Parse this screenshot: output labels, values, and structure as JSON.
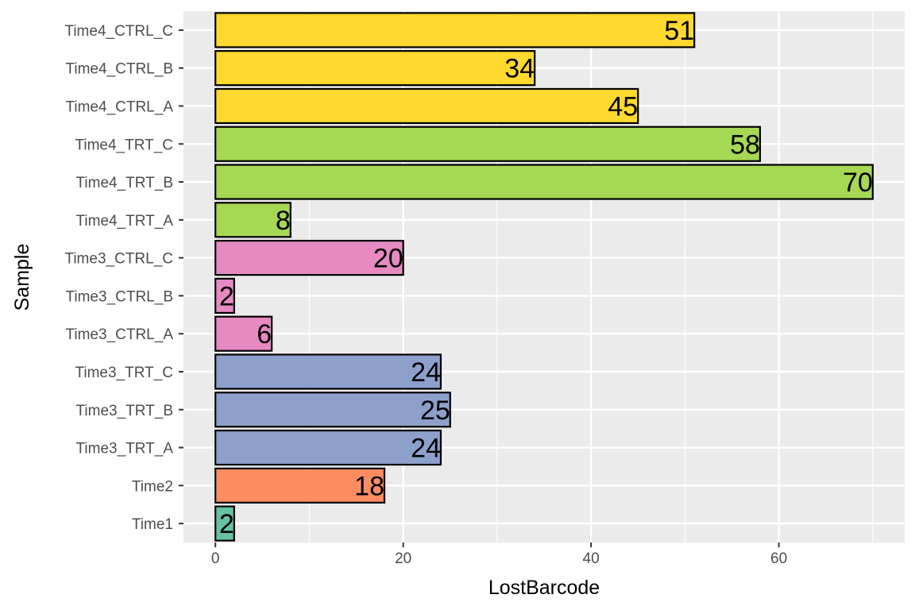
{
  "chart_data": {
    "type": "bar",
    "orientation": "horizontal",
    "xlabel": "LostBarcode",
    "ylabel": "Sample",
    "xlim": [
      -3.4,
      73.4
    ],
    "x_ticks": [
      0,
      20,
      40,
      60
    ],
    "grid": true,
    "legend": "none",
    "panel_background": "#ebebeb",
    "gridline_color": "#ffffff",
    "bar_outline_color": "#000000",
    "categories": [
      "Time1",
      "Time2",
      "Time3_TRT_A",
      "Time3_TRT_B",
      "Time3_TRT_C",
      "Time3_CTRL_A",
      "Time3_CTRL_B",
      "Time3_CTRL_C",
      "Time4_TRT_A",
      "Time4_TRT_B",
      "Time4_TRT_C",
      "Time4_CTRL_A",
      "Time4_CTRL_B",
      "Time4_CTRL_C"
    ],
    "values": [
      2,
      18,
      24,
      25,
      24,
      6,
      2,
      20,
      8,
      70,
      58,
      45,
      34,
      51
    ],
    "colors": [
      "#66c2a5",
      "#fc8d62",
      "#8da0cb",
      "#8da0cb",
      "#8da0cb",
      "#e78ac3",
      "#e78ac3",
      "#e78ac3",
      "#a6d854",
      "#a6d854",
      "#a6d854",
      "#ffd92f",
      "#ffd92f",
      "#ffd92f"
    ]
  }
}
